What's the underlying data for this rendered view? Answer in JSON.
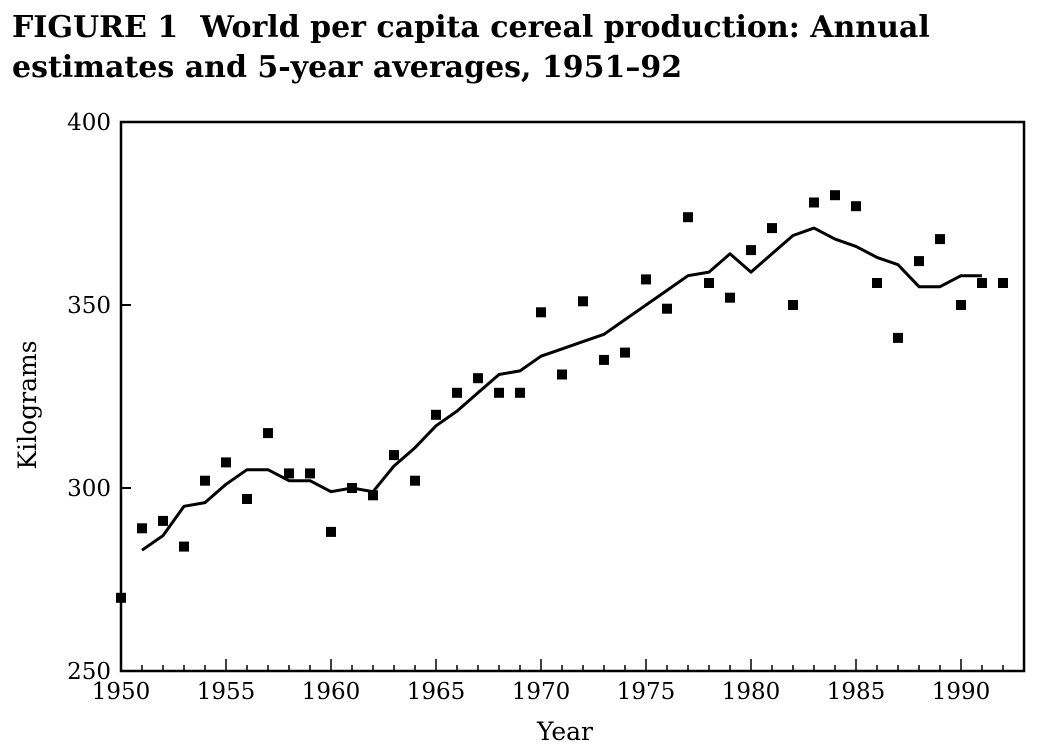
{
  "figure": {
    "label": "FIGURE 1",
    "title_line1": "World per capita cereal production: Annual",
    "title_line2": "estimates and 5-year averages, 1951–92"
  },
  "chart_data": {
    "type": "scatter",
    "xlabel": "Year",
    "ylabel": "Kilograms",
    "xlim": [
      1950,
      1993
    ],
    "ylim": [
      250,
      400
    ],
    "x_ticks": [
      1950,
      1955,
      1960,
      1965,
      1970,
      1975,
      1980,
      1985,
      1990
    ],
    "y_ticks": [
      250,
      300,
      350,
      400
    ],
    "grid": false,
    "series": [
      {
        "kind": "markers",
        "marker": "square",
        "x": [
          1950,
          1951,
          1952,
          1953,
          1954,
          1955,
          1956,
          1957,
          1958,
          1959,
          1960,
          1961,
          1962,
          1963,
          1964,
          1965,
          1966,
          1967,
          1968,
          1969,
          1970,
          1971,
          1972,
          1973,
          1974,
          1975,
          1976,
          1977,
          1978,
          1979,
          1980,
          1981,
          1982,
          1983,
          1984,
          1985,
          1986,
          1987,
          1988,
          1989,
          1990,
          1991,
          1992
        ],
        "y": [
          270,
          289,
          291,
          284,
          302,
          307,
          297,
          315,
          304,
          304,
          288,
          300,
          298,
          309,
          302,
          320,
          326,
          330,
          326,
          326,
          348,
          331,
          351,
          335,
          337,
          357,
          349,
          374,
          356,
          352,
          365,
          371,
          350,
          378,
          380,
          377,
          356,
          341,
          362,
          368,
          350,
          356,
          356
        ]
      },
      {
        "kind": "line",
        "x": [
          1951,
          1952,
          1953,
          1954,
          1955,
          1956,
          1957,
          1958,
          1959,
          1960,
          1961,
          1962,
          1963,
          1964,
          1965,
          1966,
          1967,
          1968,
          1969,
          1970,
          1971,
          1972,
          1973,
          1974,
          1975,
          1976,
          1977,
          1978,
          1979,
          1980,
          1981,
          1982,
          1983,
          1984,
          1985,
          1986,
          1987,
          1988,
          1989,
          1990,
          1991
        ],
        "y": [
          283,
          287,
          295,
          296,
          301,
          305,
          305,
          302,
          302,
          299,
          300,
          299,
          306,
          311,
          317,
          321,
          326,
          331,
          332,
          336,
          338,
          340,
          342,
          346,
          350,
          354,
          358,
          359,
          364,
          359,
          364,
          369,
          371,
          368,
          366,
          363,
          361,
          355,
          355,
          358,
          358
        ]
      }
    ]
  }
}
